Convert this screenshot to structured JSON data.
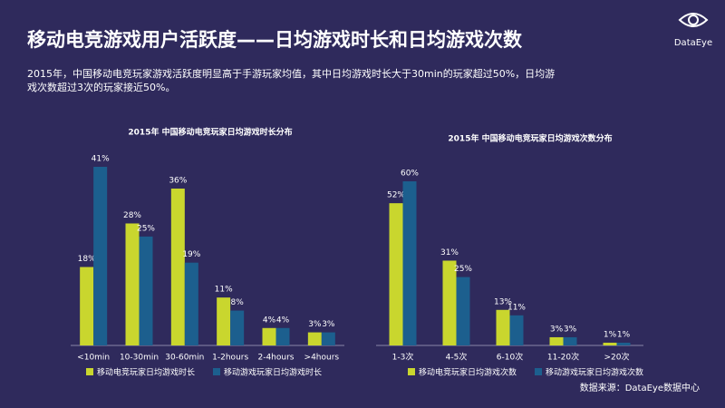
{
  "title": "移动电竞游戏用户活跃度——日均游戏时长和日均游戏次数",
  "subtitle": "2015年，中国移动电竞玩家游戏活跃度明显高于手游玩家均值，其中日均游戏时长大于30min的玩家超过50%，日均游戏次数超过3次的玩家接近50%。",
  "logo": "DataEye",
  "source": "数据来源：DataEye数据中心",
  "chart_data": [
    {
      "type": "bar",
      "title": "2015年 中国移动电竞玩家日均游戏时长分布",
      "categories": [
        "<10min",
        "10-30min",
        "30-60min",
        "1-2hours",
        "2-4hours",
        ">4hours"
      ],
      "series": [
        {
          "name": "移动电竞玩家日均游戏时长",
          "color": "#c9d62e",
          "values": [
            18,
            28,
            36,
            11,
            4,
            3
          ],
          "value_labels": [
            "18%",
            "28%",
            "36%",
            "11%",
            "4%",
            "3%"
          ]
        },
        {
          "name": "移动游戏玩家日均游戏时长",
          "color": "#1c5f8e",
          "values": [
            41,
            25,
            19,
            8,
            4,
            3
          ],
          "value_labels": [
            "41%",
            "25%",
            "19%",
            "8%",
            "4%",
            "3%"
          ]
        }
      ]
    },
    {
      "type": "bar",
      "title": "2015年 中国移动电竞玩家日均游戏次数分布",
      "categories": [
        "1-3次",
        "4-5次",
        "6-10次",
        "11-20次",
        ">20次"
      ],
      "series": [
        {
          "name": "移动电竞玩家日均游戏次数",
          "color": "#c9d62e",
          "values": [
            52,
            31,
            13,
            3,
            1
          ],
          "value_labels": [
            "52%",
            "31%",
            "13%",
            "3%",
            "1%"
          ]
        },
        {
          "name": "移动游戏玩家日均游戏次数",
          "color": "#1c5f8e",
          "values": [
            60,
            25,
            11,
            3,
            1
          ],
          "value_labels": [
            "60%",
            "25%",
            "11%",
            "3%",
            "1%"
          ]
        }
      ]
    }
  ]
}
